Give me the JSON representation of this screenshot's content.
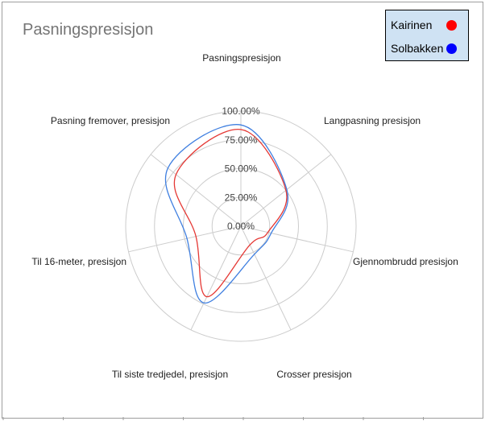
{
  "chart_data": {
    "type": "radar",
    "title": "Pasningspresisjon",
    "categories": [
      "Pasningspresisjon",
      "Langpasning presisjon",
      "Gjennombrudd presisjon",
      "Crosser presisjon",
      "Til siste tredjedel, presisjon",
      "Til 16-meter, presisjon",
      "Pasning fremover, presisjon"
    ],
    "tick_labels": [
      "0.00%",
      "25.00%",
      "50.00%",
      "75.00%",
      "100.00%"
    ],
    "rlim": [
      0,
      100
    ],
    "grid": true,
    "legend_position": "top-right",
    "series": [
      {
        "name": "Kairinen",
        "color": "#e53935",
        "values": [
          84,
          50,
          24,
          18,
          68,
          40,
          72
        ]
      },
      {
        "name": "Solbakken",
        "color": "#3f7fe0",
        "values": [
          88,
          51,
          27,
          27,
          74,
          48,
          81
        ]
      }
    ]
  },
  "legend": {
    "items": [
      {
        "label": "Kairinen",
        "dot_color": "#ff0000"
      },
      {
        "label": "Solbakken",
        "dot_color": "#0000ff"
      }
    ]
  }
}
